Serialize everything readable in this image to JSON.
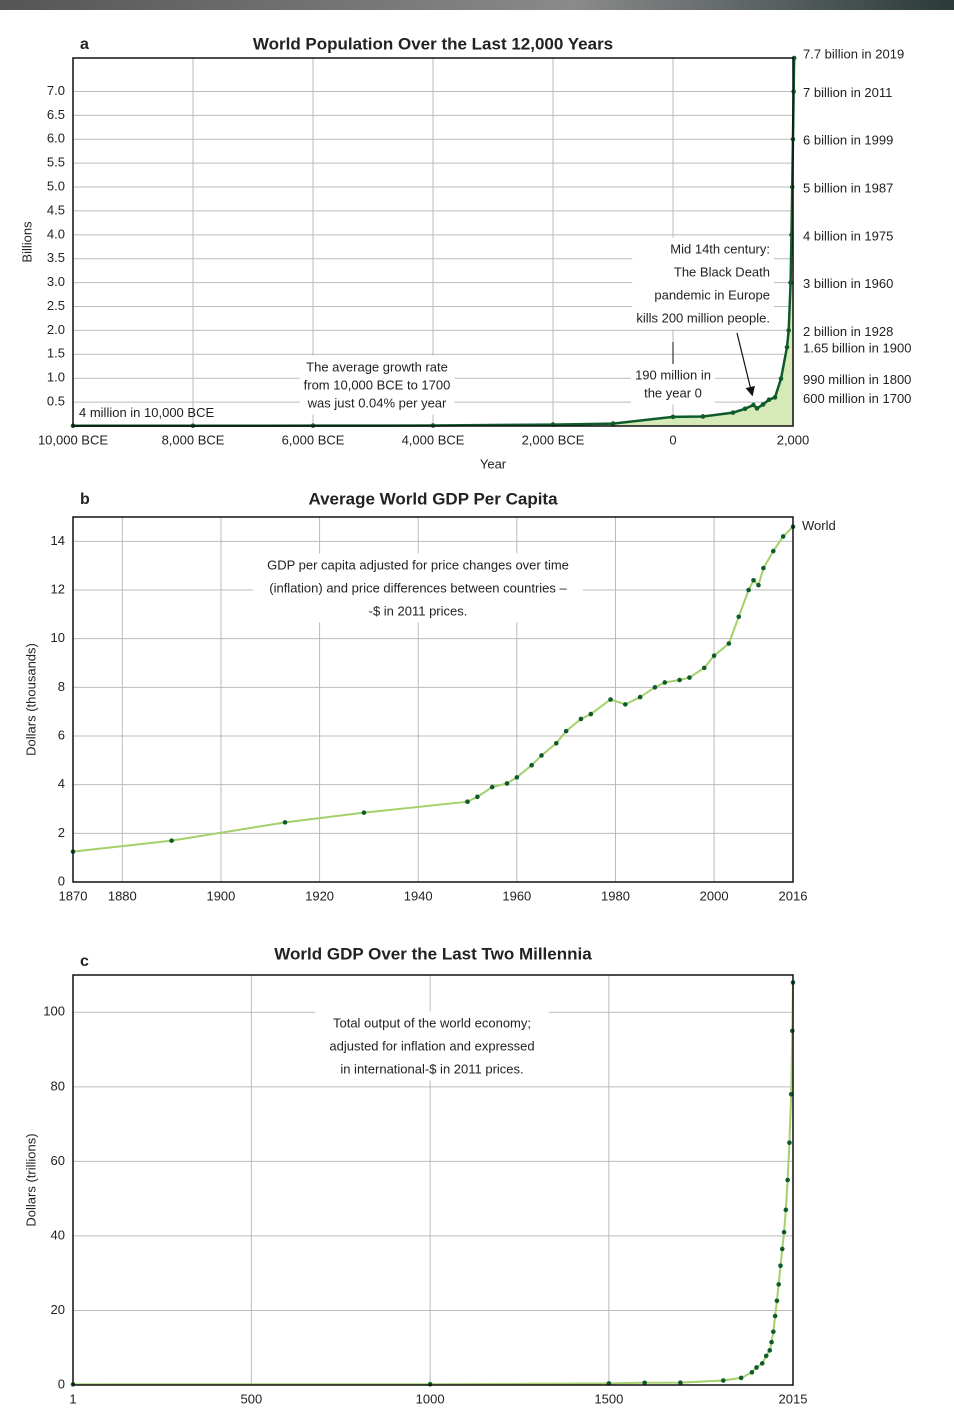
{
  "chart_data": [
    {
      "type": "line",
      "panel": "a",
      "title": "World Population Over the Last 12,000 Years",
      "x_label": "Year",
      "y_label": "Billions",
      "fill": true,
      "fill_color": "#d6eab8",
      "grid": true,
      "xlim": [
        -10000,
        2000
      ],
      "xticks": [
        {
          "value": -10000,
          "label": "10,000 BCE"
        },
        {
          "value": -8000,
          "label": "8,000 BCE"
        },
        {
          "value": -6000,
          "label": "6,000 BCE"
        },
        {
          "value": -4000,
          "label": "4,000 BCE"
        },
        {
          "value": -2000,
          "label": "2,000 BCE"
        },
        0,
        {
          "value": 2000,
          "label": "2,000"
        }
      ],
      "ylim": [
        0,
        7.7
      ],
      "yticks": [
        0.5,
        {
          "value": 1,
          "label": "1.0"
        },
        1.5,
        {
          "value": 2,
          "label": "2.0"
        },
        2.5,
        {
          "value": 3,
          "label": "3.0"
        },
        3.5,
        {
          "value": 4,
          "label": "4.0"
        },
        4.5,
        {
          "value": 5,
          "label": "5.0"
        },
        5.5,
        {
          "value": 6,
          "label": "6.0"
        },
        6.5,
        {
          "value": 7,
          "label": "7.0"
        }
      ],
      "x": [
        -10000,
        -8000,
        -6000,
        -4000,
        -2000,
        -1000,
        0,
        500,
        1000,
        1200,
        1340,
        1400,
        1500,
        1600,
        1700,
        1800,
        1900,
        1928,
        1960,
        1975,
        1987,
        1999,
        2011,
        2019
      ],
      "series": [
        {
          "color": "#0d5b2b",
          "marker_color": "#0d5b2b",
          "values": [
            0.004,
            0.005,
            0.007,
            0.01,
            0.03,
            0.05,
            0.19,
            0.2,
            0.28,
            0.36,
            0.44,
            0.37,
            0.45,
            0.55,
            0.6,
            0.99,
            1.65,
            2,
            3,
            4,
            5,
            6,
            7,
            7.7
          ],
          "value_labels": [
            "4 million in 10,000 BCE",
            null,
            null,
            null,
            null,
            null,
            null,
            null,
            null,
            null,
            null,
            null,
            null,
            null,
            "600 million in 1700",
            "990 million in 1800",
            "1.65 billion in 1900",
            "2 billion in 1928",
            "3 billion in 1960",
            "4 billion in 1975",
            "5 billion in 1987",
            "6 billion in 1999",
            "7 billion in 2011",
            "7.7 billion in 2019"
          ]
        }
      ],
      "annotations": [
        {
          "lines": [
            "The average growth rate",
            "from 10,000 BCE to 1700",
            "was just 0.04% per year"
          ]
        },
        {
          "lines": [
            "Mid 14th century:",
            "The Black Death",
            "pandemic in Europe",
            "kills 200 million people."
          ]
        },
        {
          "lines": [
            "190 million in",
            "the year 0"
          ]
        }
      ]
    },
    {
      "type": "line",
      "panel": "b",
      "title": "Average World GDP Per Capita",
      "y_label": "Dollars (thousands)",
      "grid": true,
      "xlim": [
        1870,
        2016
      ],
      "xticks": [
        1870,
        1880,
        1900,
        1920,
        1940,
        1960,
        1980,
        2000,
        2016
      ],
      "ylim": [
        0,
        15
      ],
      "yticks": [
        0,
        2,
        4,
        6,
        8,
        10,
        12,
        14
      ],
      "x": [
        1870,
        1890,
        1913,
        1929,
        1950,
        1952,
        1955,
        1958,
        1960,
        1963,
        1965,
        1968,
        1970,
        1973,
        1975,
        1979,
        1982,
        1985,
        1988,
        1990,
        1993,
        1995,
        1998,
        2000,
        2003,
        2005,
        2007,
        2008,
        2009,
        2010,
        2012,
        2014,
        2016
      ],
      "series": [
        {
          "name": "World",
          "color": "#a5d06b",
          "marker_color": "#0d5b2b",
          "values": [
            1.25,
            1.7,
            2.45,
            2.85,
            3.3,
            3.5,
            3.9,
            4.05,
            4.3,
            4.8,
            5.2,
            5.7,
            6.2,
            6.7,
            6.9,
            7.5,
            7.3,
            7.6,
            8.0,
            8.2,
            8.3,
            8.4,
            8.8,
            9.3,
            9.8,
            10.9,
            12.0,
            12.4,
            12.2,
            12.9,
            13.6,
            14.2,
            14.6
          ]
        }
      ],
      "annotations": [
        {
          "lines": [
            "GDP per capita adjusted for price changes over time",
            "(inflation) and price differences between countries –",
            "-$ in 2011 prices."
          ]
        }
      ]
    },
    {
      "type": "line",
      "panel": "c",
      "title": "World GDP Over the Last Two Millennia",
      "y_label": "Dollars (trillions)",
      "grid": true,
      "xlim": [
        1,
        2015
      ],
      "xticks": [
        1,
        500,
        1000,
        1500,
        2015
      ],
      "ylim": [
        0,
        110
      ],
      "yticks": [
        0,
        20,
        40,
        60,
        80,
        100
      ],
      "x": [
        1,
        1000,
        1500,
        1600,
        1700,
        1820,
        1870,
        1900,
        1913,
        1929,
        1940,
        1950,
        1955,
        1960,
        1965,
        1970,
        1975,
        1980,
        1985,
        1990,
        1995,
        2000,
        2005,
        2010,
        2013,
        2015
      ],
      "series": [
        {
          "color": "#a5d06b",
          "marker_color": "#0d5b2b",
          "values": [
            0.18,
            0.21,
            0.43,
            0.6,
            0.64,
            1.2,
            1.9,
            3.4,
            4.7,
            5.8,
            7.8,
            9.3,
            11.5,
            14.3,
            18.5,
            22.6,
            27,
            32,
            36.5,
            41,
            47,
            55,
            65,
            78,
            95,
            108
          ]
        }
      ],
      "annotations": [
        {
          "lines": [
            "Total output of the world economy;",
            "adjusted for inflation and expressed",
            "in international-$ in 2011 prices."
          ]
        }
      ]
    }
  ]
}
